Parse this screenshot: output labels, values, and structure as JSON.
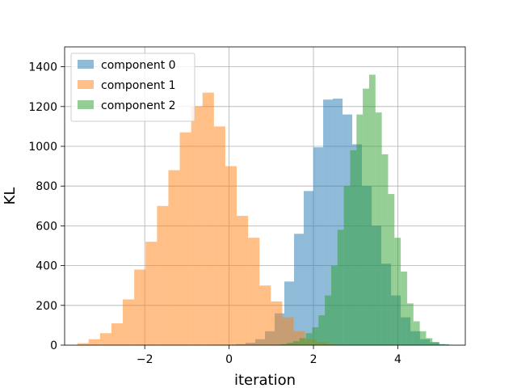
{
  "chart_data": {
    "type": "histogram",
    "xlabel": "iteration",
    "ylabel": "KL",
    "xlim": [
      -3.9,
      5.6
    ],
    "ylim": [
      0,
      1500
    ],
    "xticks": [
      -2,
      0,
      2,
      4
    ],
    "xtick_labels": [
      "−2",
      "0",
      "2",
      "4"
    ],
    "yticks": [
      0,
      200,
      400,
      600,
      800,
      1000,
      1200,
      1400
    ],
    "ytick_labels": [
      "0",
      "200",
      "400",
      "600",
      "800",
      "1000",
      "1200",
      "1400"
    ],
    "grid": true,
    "legend": {
      "location": "upper-left"
    },
    "bar_alpha": 0.5,
    "series": [
      {
        "name": "component 0",
        "color": "#1f77b4",
        "bin_edges": [
          -0.3,
          -0.07,
          0.16,
          0.39,
          0.62,
          0.85,
          1.08,
          1.31,
          1.54,
          1.77,
          2.0,
          2.23,
          2.46,
          2.69,
          2.92,
          3.15,
          3.38,
          3.61,
          3.84,
          4.07,
          4.3,
          4.53,
          4.76,
          4.99,
          5.22
        ],
        "counts": [
          1,
          2,
          5,
          12,
          30,
          70,
          160,
          320,
          560,
          775,
          995,
          1235,
          1240,
          1160,
          1010,
          800,
          600,
          410,
          250,
          140,
          70,
          30,
          15,
          5
        ]
      },
      {
        "name": "component 1",
        "color": "#ff7f0e",
        "bin_edges": [
          -3.6,
          -3.33,
          -3.06,
          -2.79,
          -2.52,
          -2.25,
          -1.98,
          -1.71,
          -1.44,
          -1.17,
          -0.9,
          -0.63,
          -0.36,
          -0.09,
          0.18,
          0.45,
          0.72,
          0.99,
          1.26,
          1.53,
          1.8,
          2.07,
          2.34,
          2.61
        ],
        "counts": [
          10,
          30,
          60,
          110,
          230,
          380,
          520,
          700,
          880,
          1070,
          1200,
          1270,
          1100,
          900,
          650,
          540,
          300,
          220,
          140,
          70,
          30,
          15,
          5
        ]
      },
      {
        "name": "component 2",
        "color": "#2ca02c",
        "bin_edges": [
          1.07,
          1.22,
          1.37,
          1.52,
          1.67,
          1.82,
          1.97,
          2.12,
          2.27,
          2.42,
          2.57,
          2.72,
          2.87,
          3.02,
          3.17,
          3.32,
          3.47,
          3.62,
          3.77,
          3.92,
          4.07,
          4.22,
          4.37,
          4.52,
          4.67,
          4.82,
          4.97,
          5.12
        ],
        "counts": [
          2,
          5,
          12,
          20,
          35,
          60,
          90,
          150,
          250,
          400,
          580,
          800,
          980,
          1160,
          1290,
          1360,
          1170,
          960,
          760,
          540,
          370,
          210,
          120,
          70,
          35,
          15,
          5
        ]
      }
    ]
  }
}
